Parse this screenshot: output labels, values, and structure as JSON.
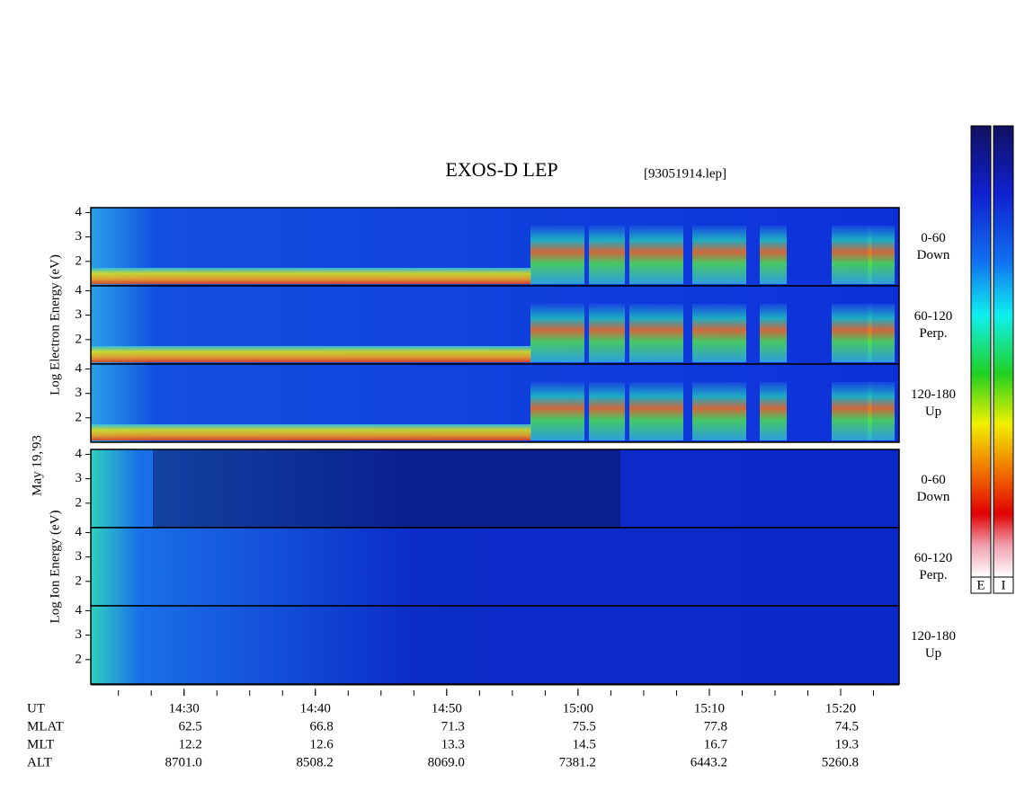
{
  "chart_data": {
    "type": "spectrogram",
    "title": "EXOS-D LEP",
    "subtitle": "[93051914.lep]",
    "date_label": "May 19,'93",
    "groups": [
      {
        "ylabel": "Log Electron Energy (eV)",
        "species": "electron",
        "panels": [
          {
            "label": "0-60",
            "sublabel": "Down"
          },
          {
            "label": "60-120",
            "sublabel": "Perp."
          },
          {
            "label": "120-180",
            "sublabel": "Up"
          }
        ]
      },
      {
        "ylabel": "Log Ion Energy (eV)",
        "species": "ion",
        "panels": [
          {
            "label": "0-60",
            "sublabel": "Down"
          },
          {
            "label": "60-120",
            "sublabel": "Perp."
          },
          {
            "label": "120-180",
            "sublabel": "Up"
          }
        ]
      }
    ],
    "ylim": [
      1,
      4.2
    ],
    "yticks": [
      2,
      3,
      4
    ],
    "xlim": [
      22.9,
      84.45
    ],
    "xticks": [
      {
        "value": 30,
        "label": "14:30"
      },
      {
        "value": 40,
        "label": "14:40"
      },
      {
        "value": 50,
        "label": "14:50"
      },
      {
        "value": 60,
        "label": "15:00"
      },
      {
        "value": 70,
        "label": "15:10"
      },
      {
        "value": 80,
        "label": "15:20"
      }
    ],
    "minor_xticks": [
      25,
      27.5,
      30,
      32.5,
      35,
      37.5,
      40,
      42.5,
      45,
      47.5,
      50,
      52.5,
      55,
      57.5,
      60,
      62.5,
      65,
      67.5,
      70,
      72.5,
      75,
      77.5,
      80,
      82.5
    ],
    "ephemeris": [
      {
        "name": "UT"
      },
      {
        "name": "MLAT",
        "values": [
          "62.5",
          "66.8",
          "71.3",
          "75.5",
          "77.8",
          "74.5"
        ]
      },
      {
        "name": "MLT",
        "values": [
          "12.2",
          "12.6",
          "13.3",
          "14.5",
          "16.7",
          "19.3"
        ]
      },
      {
        "name": "ALT",
        "values": [
          "8701.0",
          "8508.2",
          "8069.0",
          "7381.2",
          "6443.2",
          "5260.8"
        ]
      }
    ],
    "colorbar_labels": [
      "E",
      "I"
    ]
  }
}
